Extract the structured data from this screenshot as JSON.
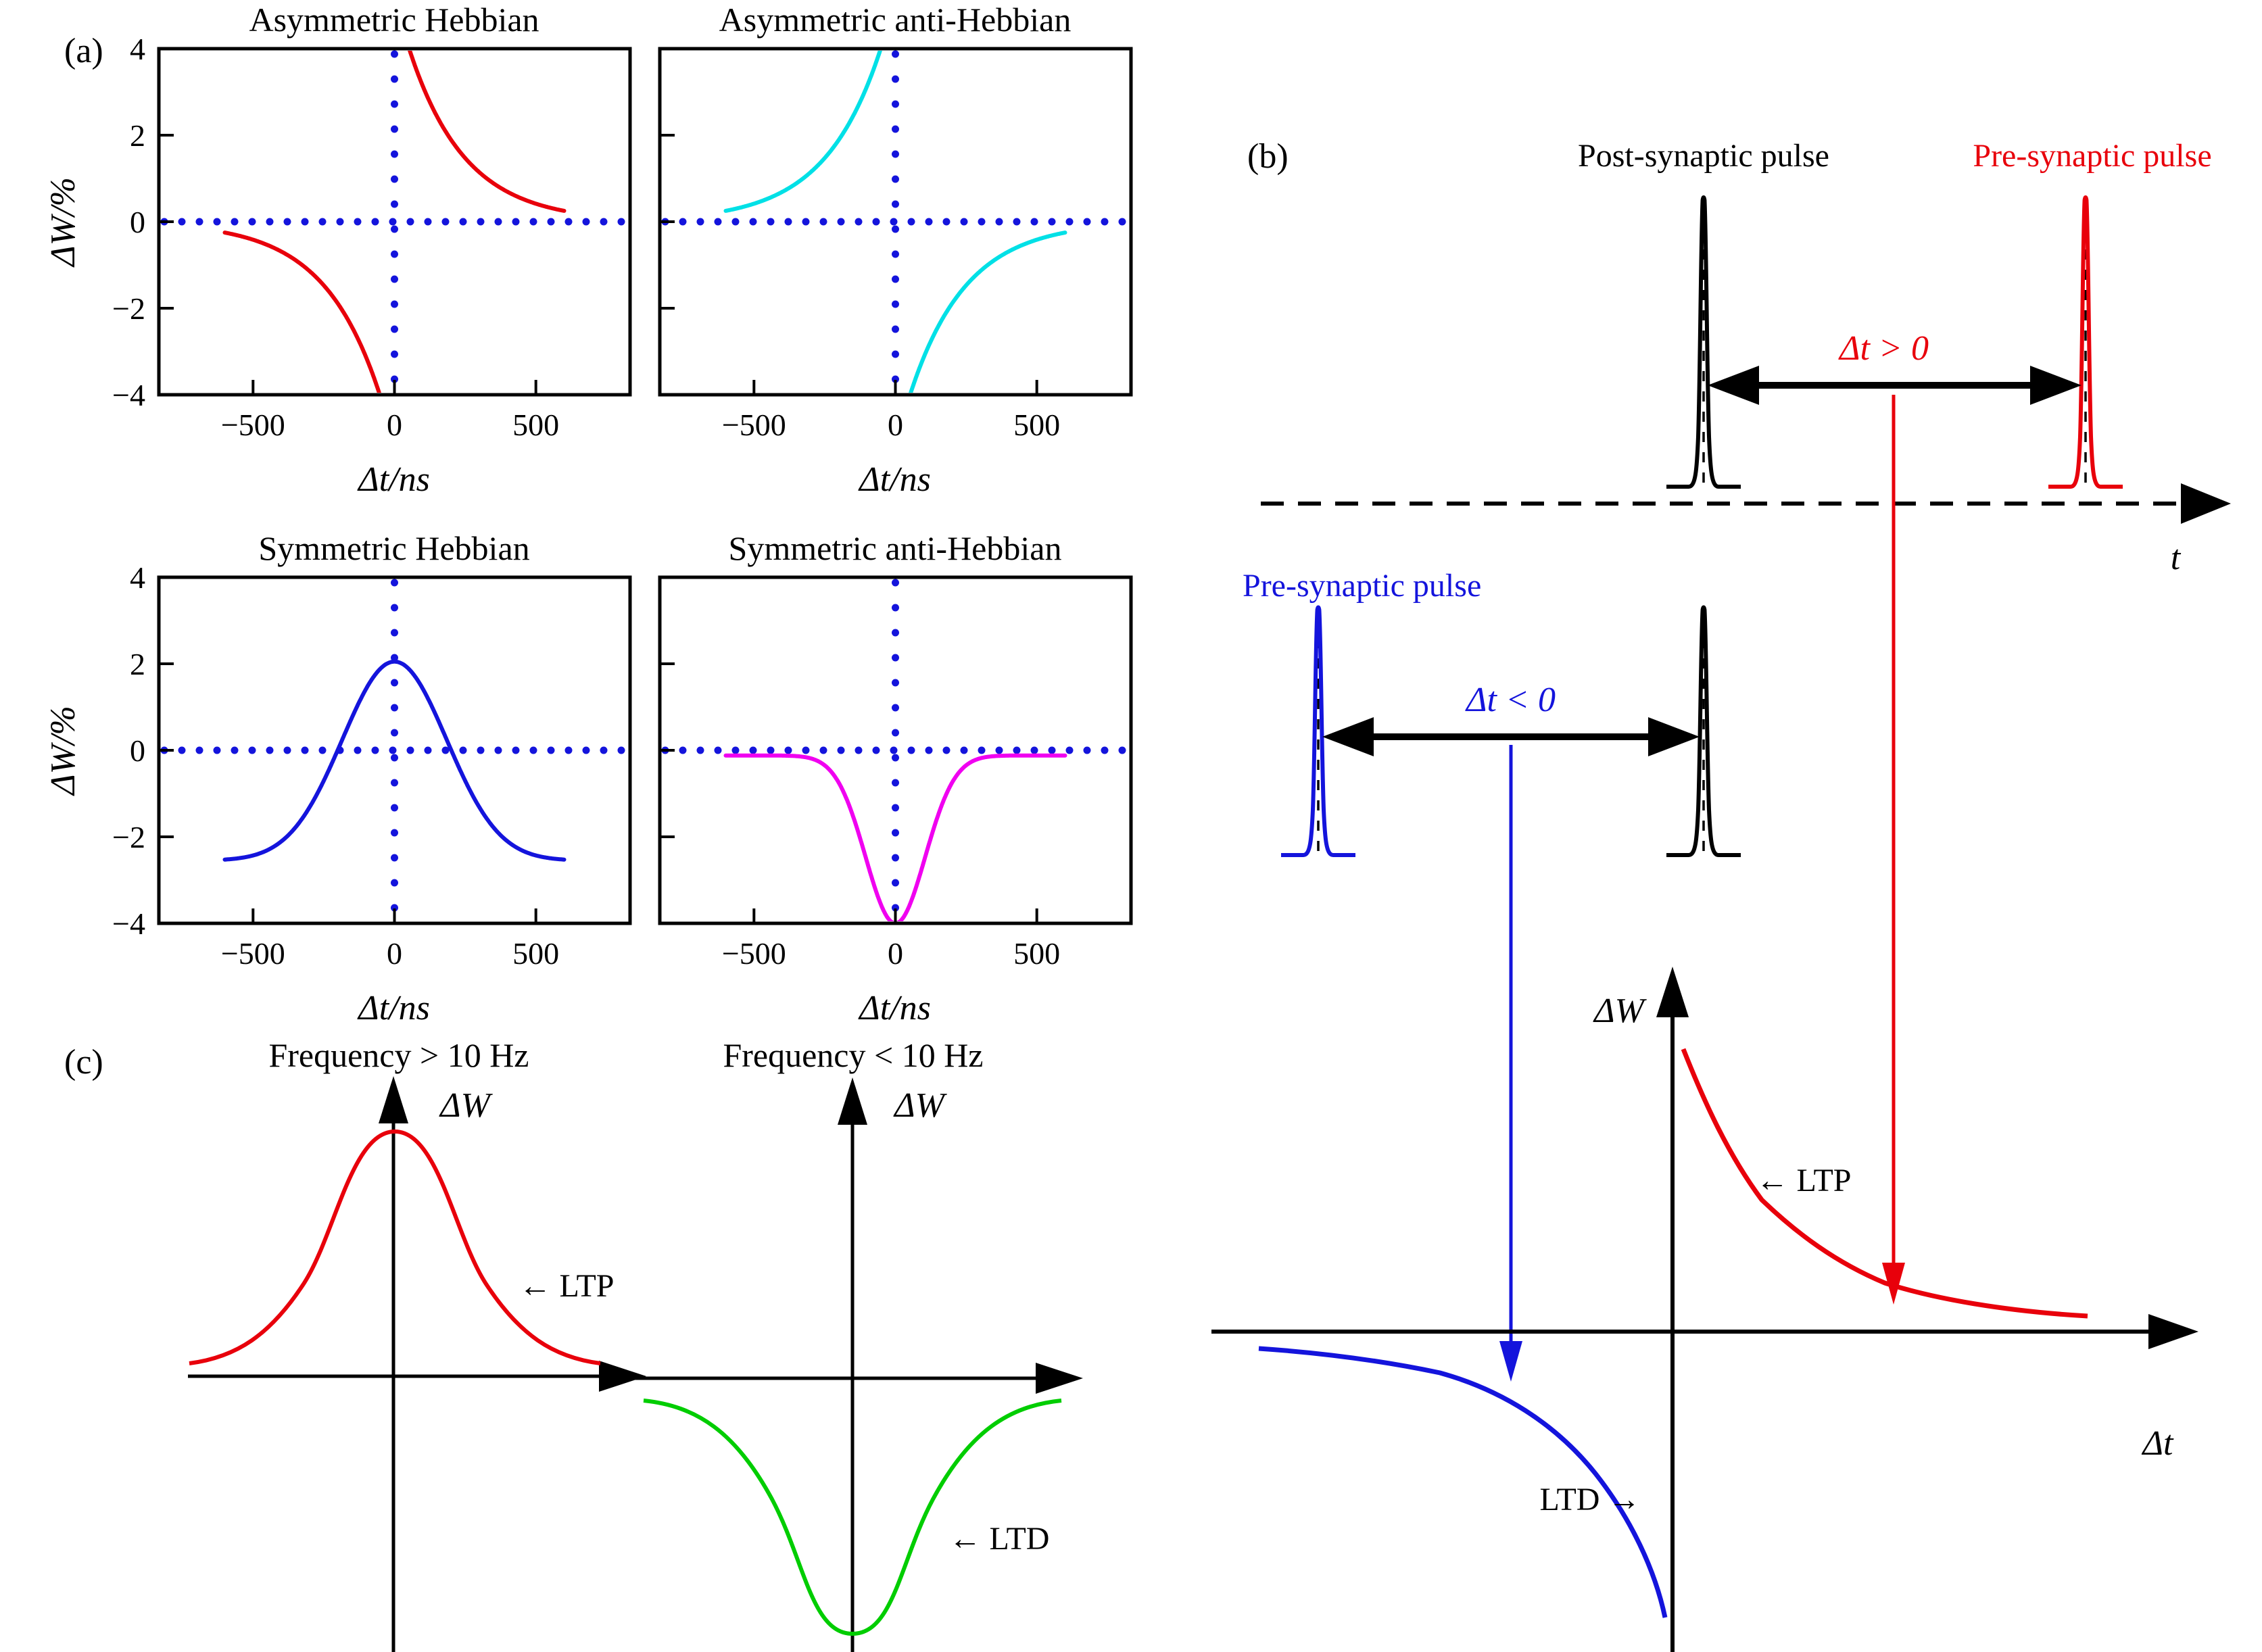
{
  "figure": {
    "background": "#ffffff",
    "panel_a": {
      "label": "(a)",
      "shared_ylabel": "ΔW/%",
      "shared_xlabel": "Δt/ns"
    },
    "panel_b": {
      "label": "(b)",
      "post_synaptic_label": "Post-synaptic pulse",
      "pre_synaptic_label_top": "Pre-synaptic pulse",
      "pre_synaptic_label_mid": "Pre-synaptic pulse",
      "dt_positive_label": "Δt > 0",
      "dt_negative_label": "Δt < 0",
      "time_axis_label": "t",
      "stdp_y_axis_label": "ΔW",
      "stdp_x_axis_label": "Δt",
      "ltp_annotation": "← LTP",
      "ltd_annotation": "LTD →",
      "colors": {
        "post_pulse": "#000000",
        "pre_pulse_top": "#e8000b",
        "pre_pulse_mid": "#1414dc",
        "ltp_curve": "#e8000b",
        "ltd_curve": "#1414dc"
      }
    },
    "panel_c": {
      "label": "(c)",
      "left": {
        "title": "Frequency > 10 Hz",
        "y_axis_label": "ΔW",
        "annotation": "← LTP",
        "curve_color": "#e8000b"
      },
      "right": {
        "title": "Frequency < 10 Hz",
        "y_axis_label": "ΔW",
        "annotation": "← LTD",
        "curve_color": "#00cd00"
      }
    }
  },
  "chart_data": [
    {
      "type": "line",
      "panel": "a1",
      "title": "Asymmetric Hebbian",
      "xlabel": "Δt/ns",
      "ylabel": "ΔW/%",
      "xlim": [
        -833,
        833
      ],
      "ylim": [
        -4,
        4
      ],
      "xticks": [
        -500,
        0,
        500
      ],
      "yticks": [
        -4,
        -2,
        0,
        2,
        4
      ],
      "show_ytick_labels": true,
      "zero_guides": "dotted",
      "guide_color": "#1414dc",
      "series": [
        {
          "name": "asymmetric Hebbian STDP window",
          "color": "#e8000b",
          "model": "exponential",
          "params": {
            "amplitude": 5.2,
            "tau_ns": 198,
            "x_range": [
              -600,
              600
            ],
            "polarity": "hebbian"
          },
          "description": "ΔW=+A·exp(−Δt/τ) for Δt>0 (potentiation), ΔW=−A·exp(Δt/τ) for Δt<0 (depression); approaches ±0.25% at Δt=±600 ns, clipped at ±4%"
        }
      ]
    },
    {
      "type": "line",
      "panel": "a2",
      "title": "Asymmetric anti-Hebbian",
      "xlabel": "Δt/ns",
      "ylabel": "ΔW/%",
      "xlim": [
        -833,
        833
      ],
      "ylim": [
        -4,
        4
      ],
      "xticks": [
        -500,
        0,
        500
      ],
      "yticks": [
        -4,
        -2,
        0,
        2,
        4
      ],
      "show_ytick_labels": false,
      "zero_guides": "dotted",
      "guide_color": "#1414dc",
      "series": [
        {
          "name": "asymmetric anti-Hebbian STDP window",
          "color": "#00e0e6",
          "model": "exponential",
          "params": {
            "amplitude": 5.2,
            "tau_ns": 198,
            "x_range": [
              -600,
              600
            ],
            "polarity": "anti"
          },
          "description": "ΔW=+A·exp(Δt/τ) for Δt<0, ΔW=−A·exp(−Δt/τ) for Δt>0; mirror image of Hebbian window"
        }
      ]
    },
    {
      "type": "line",
      "panel": "a3",
      "title": "Symmetric Hebbian",
      "xlabel": "Δt/ns",
      "ylabel": "ΔW/%",
      "xlim": [
        -833,
        833
      ],
      "ylim": [
        -4,
        4
      ],
      "xticks": [
        -500,
        0,
        500
      ],
      "yticks": [
        -4,
        -2,
        0,
        2,
        4
      ],
      "show_ytick_labels": true,
      "zero_guides": "dotted",
      "guide_color": "#1414dc",
      "series": [
        {
          "name": "symmetric Hebbian STDP window",
          "color": "#1414dc",
          "model": "gaussian_offset",
          "params": {
            "peak": 2.05,
            "baseline": -2.55,
            "sigma_ns": 185,
            "x_range": [
              -600,
              600
            ]
          },
          "description": "Gaussian centred at Δt=0 with peak +2% and tails at −2.5%; zero crossings near ±200 ns"
        }
      ]
    },
    {
      "type": "line",
      "panel": "a4",
      "title": "Symmetric anti-Hebbian",
      "xlabel": "Δt/ns",
      "ylabel": "ΔW/%",
      "xlim": [
        -833,
        833
      ],
      "ylim": [
        -4,
        4
      ],
      "xticks": [
        -500,
        0,
        500
      ],
      "yticks": [
        -4,
        -2,
        0,
        2,
        4
      ],
      "show_ytick_labels": false,
      "zero_guides": "dotted",
      "guide_color": "#1414dc",
      "series": [
        {
          "name": "symmetric anti-Hebbian STDP window",
          "color": "#f000f0",
          "model": "gaussian_offset",
          "params": {
            "peak": -4.0,
            "baseline": -0.12,
            "sigma_ns": 105,
            "x_range": [
              -600,
              600
            ]
          },
          "description": "Inverted Gaussian dip centred at Δt=0 reaching −4% with flat tails just below 0%"
        }
      ]
    },
    {
      "type": "line",
      "panel": "b",
      "title": "STDP learning rule schematic",
      "xlabel": "Δt",
      "ylabel": "ΔW",
      "series": [
        {
          "name": "LTP branch",
          "color": "#e8000b",
          "description": "exponential decay in the Δt>0 quadrant, labelled ← LTP"
        },
        {
          "name": "LTD branch",
          "color": "#1414dc",
          "description": "negative exponential in the Δt<0 quadrant, labelled LTD →"
        }
      ],
      "annotations": [
        "Post-synaptic pulse",
        "Pre-synaptic pulse",
        "Δt > 0",
        "Δt < 0",
        "t"
      ]
    },
    {
      "type": "line",
      "panel": "c-left",
      "title": "Frequency > 10 Hz",
      "ylabel": "ΔW",
      "series": [
        {
          "name": "LTP rate window",
          "color": "#e8000b",
          "description": "Gaussian hump above the axis, peak at Δt=0, labelled ← LTP"
        }
      ]
    },
    {
      "type": "line",
      "panel": "c-right",
      "title": "Frequency < 10 Hz",
      "ylabel": "ΔW",
      "series": [
        {
          "name": "LTD rate window",
          "color": "#00cd00",
          "description": "inverted Gaussian dip below the axis, minimum at Δt=0, labelled ← LTD"
        }
      ]
    }
  ]
}
